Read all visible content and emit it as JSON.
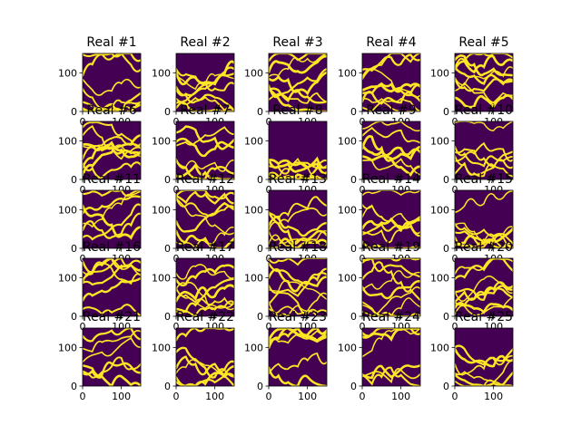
{
  "chart_data": {
    "type": "heatmap",
    "layout": {
      "rows": 5,
      "cols": 5
    },
    "xlim": [
      0,
      150
    ],
    "ylim": [
      0,
      150
    ],
    "x_ticks": [
      0,
      100
    ],
    "y_ticks": [
      0,
      100
    ],
    "colormap": {
      "low": "#440154",
      "high": "#fde725"
    },
    "panels": [
      {
        "title": "Real #1"
      },
      {
        "title": "Real #2"
      },
      {
        "title": "Real #3"
      },
      {
        "title": "Real #4"
      },
      {
        "title": "Real #5"
      },
      {
        "title": "Real #6"
      },
      {
        "title": "Real #7"
      },
      {
        "title": "Real #8"
      },
      {
        "title": "Real #9"
      },
      {
        "title": "Real #10"
      },
      {
        "title": "Real #11"
      },
      {
        "title": "Real #12"
      },
      {
        "title": "Real #13"
      },
      {
        "title": "Real #14"
      },
      {
        "title": "Real #15"
      },
      {
        "title": "Real #16"
      },
      {
        "title": "Real #17"
      },
      {
        "title": "Real #18"
      },
      {
        "title": "Real #19"
      },
      {
        "title": "Real #20"
      },
      {
        "title": "Real #21"
      },
      {
        "title": "Real #22"
      },
      {
        "title": "Real #23"
      },
      {
        "title": "Real #24"
      },
      {
        "title": "Real #25"
      }
    ]
  }
}
